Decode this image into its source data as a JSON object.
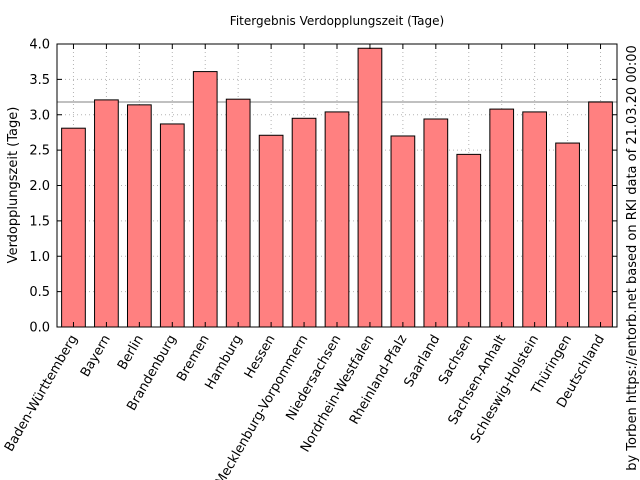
{
  "chart_data": {
    "type": "bar",
    "title": "Fitergebnis Verdopplungszeit (Tage)",
    "xlabel": "",
    "ylabel": "Verdopplungszeit (Tage)",
    "ylim": [
      0,
      4.0
    ],
    "yticks": [
      "0.0",
      "0.5",
      "1.0",
      "1.5",
      "2.0",
      "2.5",
      "3.0",
      "3.5",
      "4.0"
    ],
    "grid": true,
    "categories": [
      "Baden-Württemberg",
      "Bayern",
      "Berlin",
      "Brandenburg",
      "Bremen",
      "Hamburg",
      "Hessen",
      "Mecklenburg-Vorpommern",
      "Niedersachsen",
      "Nordrhein-Westfalen",
      "Rheinland-Pfalz",
      "Saarland",
      "Sachsen",
      "Sachsen-Anhalt",
      "Schleswig-Holstein",
      "Thüringen",
      "Deutschland"
    ],
    "values": [
      2.81,
      3.21,
      3.14,
      2.87,
      3.61,
      3.22,
      2.71,
      2.95,
      3.04,
      3.94,
      2.7,
      2.94,
      2.44,
      3.08,
      3.04,
      2.6,
      3.18
    ],
    "reference_line": 3.18,
    "colors": {
      "bar": "#ff8080",
      "bar_edge": "#000000",
      "reference": "#c0c0c0",
      "grid": "#b4b4b4"
    },
    "credit": "by Torben https://entorb.net based on RKI data of 21.03.20 00:00"
  }
}
